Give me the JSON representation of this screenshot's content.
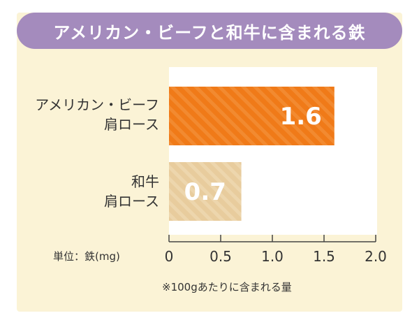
{
  "title": "アメリカン・ビーフと和牛に含まれる鉄",
  "colors": {
    "title_bg": "#a48bbd",
    "card_bg": "#fbf3d6",
    "plot_bg": "#ffffff",
    "bar_american": "#f07a18",
    "bar_wagyu": "#e8cc9d"
  },
  "chart_data": {
    "type": "bar",
    "orientation": "horizontal",
    "categories": [
      [
        "アメリカン・ビーフ",
        "肩ロース"
      ],
      [
        "和牛",
        "肩ロース"
      ]
    ],
    "values": [
      1.6,
      0.7
    ],
    "value_labels": [
      "1.6",
      "0.7"
    ],
    "xlim": [
      0,
      2.0
    ],
    "xticks": [
      0,
      0.5,
      1.0,
      1.5,
      2.0
    ],
    "xtick_labels": [
      "0",
      "0.5",
      "1.0",
      "1.5",
      "2.0"
    ],
    "unit_label": "単位：鉄(mg)",
    "footnote": "※100gあたりに含まれる量",
    "grid": false
  }
}
